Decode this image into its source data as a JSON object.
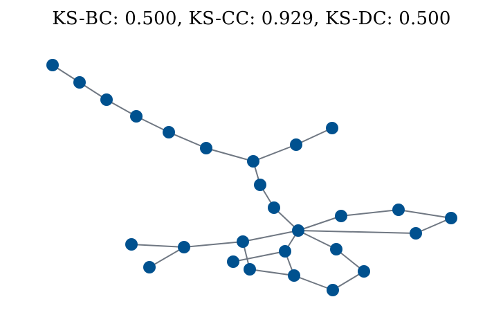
{
  "title": "KS-BC: 0.500, KS-CC: 0.929, KS-DC: 0.500",
  "colors": {
    "node": "#00518f",
    "edge": "#6f7782",
    "background": "#ffffff"
  },
  "graph": {
    "node_count": 27,
    "edges": [
      [
        0,
        1
      ],
      [
        1,
        2
      ],
      [
        2,
        3
      ],
      [
        3,
        4
      ],
      [
        4,
        5
      ],
      [
        5,
        6
      ],
      [
        6,
        7
      ],
      [
        7,
        8
      ],
      [
        6,
        9
      ],
      [
        9,
        10
      ],
      [
        10,
        11
      ],
      [
        11,
        12
      ],
      [
        12,
        13
      ],
      [
        13,
        14
      ],
      [
        14,
        15
      ],
      [
        11,
        16
      ],
      [
        16,
        17
      ],
      [
        17,
        14
      ],
      [
        11,
        18
      ],
      [
        18,
        19
      ],
      [
        11,
        20
      ],
      [
        20,
        21
      ],
      [
        21,
        22
      ],
      [
        22,
        23
      ],
      [
        23,
        24
      ],
      [
        24,
        25
      ],
      [
        20,
        26
      ],
      [
        26,
        25
      ]
    ]
  }
}
